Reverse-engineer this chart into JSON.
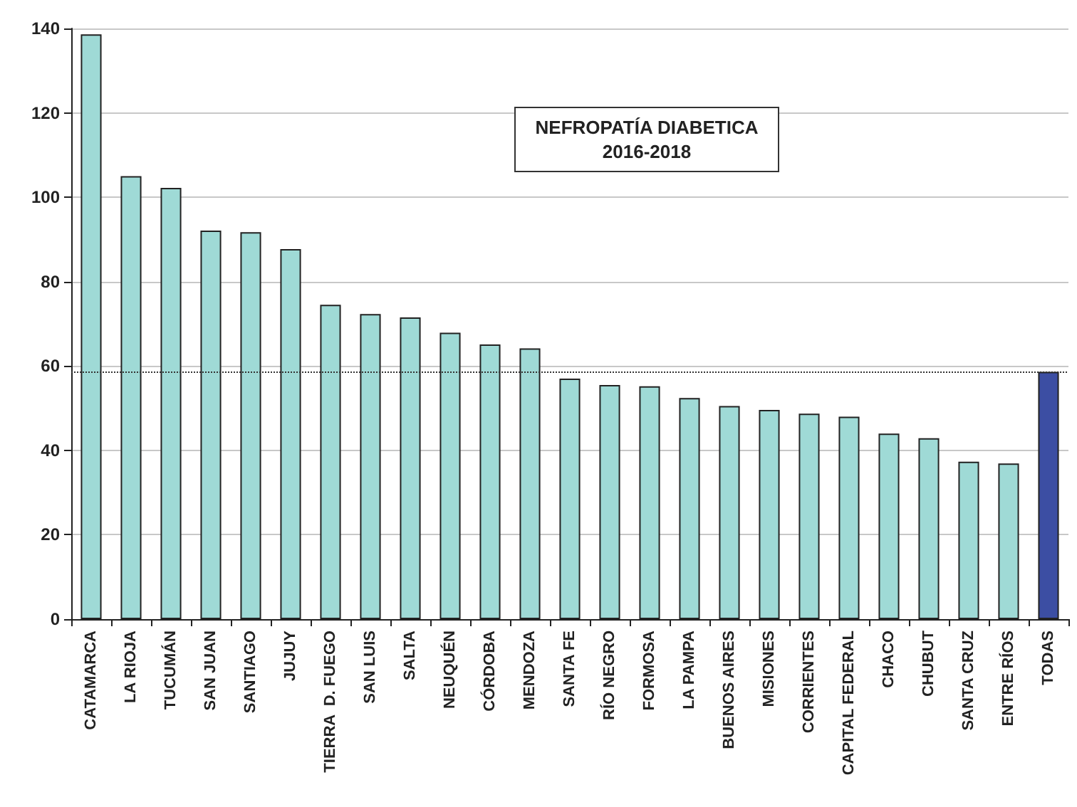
{
  "chart_data": {
    "type": "bar",
    "title": "NEFROPATÍA DIABETICA",
    "subtitle": "2016-2018",
    "categories": [
      "CATAMARCA",
      "LA RIOJA",
      "TUCUMÁN",
      "SAN JUAN",
      "SANTIAGO",
      "JUJUY",
      "TIERRA  D. FUEGO",
      "SAN LUIS",
      "SALTA",
      "NEUQUÉN",
      "CÓRDOBA",
      "MENDOZA",
      "SANTA FE",
      "RÍO NEGRO",
      "FORMOSA",
      "LA PAMPA",
      "BUENOS AIRES",
      "MISIONES",
      "CORRIENTES",
      "CAPITAL FEDERAL",
      "CHACO",
      "CHUBUT",
      "SANTA CRUZ",
      "ENTRE RÍOS",
      "TODAS"
    ],
    "values": [
      138.6,
      105.0,
      102.2,
      92.1,
      91.7,
      87.7,
      74.5,
      72.3,
      71.5,
      67.9,
      65.1,
      64.2,
      57.0,
      55.5,
      55.2,
      52.4,
      50.5,
      49.6,
      48.7,
      48.0,
      44.0,
      42.9,
      37.3,
      36.9,
      58.6
    ],
    "colors": [
      "#9fdad6",
      "#9fdad6",
      "#9fdad6",
      "#9fdad6",
      "#9fdad6",
      "#9fdad6",
      "#9fdad6",
      "#9fdad6",
      "#9fdad6",
      "#9fdad6",
      "#9fdad6",
      "#9fdad6",
      "#9fdad6",
      "#9fdad6",
      "#9fdad6",
      "#9fdad6",
      "#9fdad6",
      "#9fdad6",
      "#9fdad6",
      "#9fdad6",
      "#9fdad6",
      "#9fdad6",
      "#9fdad6",
      "#9fdad6",
      "#3c4ea3"
    ],
    "ylim": [
      0,
      140
    ],
    "yticks": [
      0,
      20,
      40,
      60,
      80,
      100,
      120,
      140
    ],
    "grid": "y",
    "ref_lines": [
      {
        "axis": "y",
        "value": 58.6,
        "label": null,
        "color": "#333333",
        "line_style": "dotted"
      }
    ]
  }
}
